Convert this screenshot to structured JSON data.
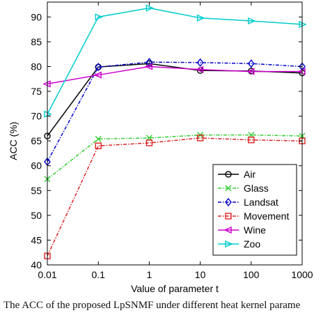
{
  "caption": "1  The ACC of the proposed LpSNMF under different heat kernel parame",
  "chart_data": {
    "type": "line",
    "categories": [
      "0.01",
      "0.1",
      "1",
      "10",
      "100",
      "1000"
    ],
    "xlabel": "Value of parameter t",
    "ylabel": "ACC (%)",
    "ylim": [
      40,
      93
    ],
    "yticks": [
      40,
      45,
      50,
      55,
      60,
      65,
      70,
      75,
      80,
      85,
      90
    ],
    "grid": false,
    "legend_position": "lower-right",
    "series": [
      {
        "name": "Air",
        "color": "#000000",
        "marker": "circle",
        "linestyle": "solid",
        "values": [
          66.0,
          79.9,
          80.6,
          79.2,
          79.1,
          78.7
        ]
      },
      {
        "name": "Glass",
        "color": "#33cc33",
        "marker": "x",
        "linestyle": "dashdot",
        "values": [
          57.3,
          65.4,
          65.6,
          66.2,
          66.2,
          66.0
        ]
      },
      {
        "name": "Landsat",
        "color": "#0000cc",
        "marker": "diamond",
        "linestyle": "dashdot",
        "values": [
          60.8,
          79.9,
          80.9,
          80.8,
          80.6,
          80.0
        ]
      },
      {
        "name": "Movement",
        "color": "#dd2222",
        "marker": "square",
        "linestyle": "dashdot",
        "values": [
          41.8,
          64.0,
          64.6,
          65.6,
          65.2,
          65.0
        ]
      },
      {
        "name": "Wine",
        "color": "#cc00cc",
        "marker": "triangle-left",
        "linestyle": "solid",
        "values": [
          76.5,
          78.3,
          80.0,
          79.4,
          79.0,
          79.0
        ]
      },
      {
        "name": "Zoo",
        "color": "#00cccc",
        "marker": "triangle-right",
        "linestyle": "solid",
        "values": [
          70.4,
          90.0,
          91.8,
          89.8,
          89.2,
          88.5
        ]
      }
    ]
  }
}
